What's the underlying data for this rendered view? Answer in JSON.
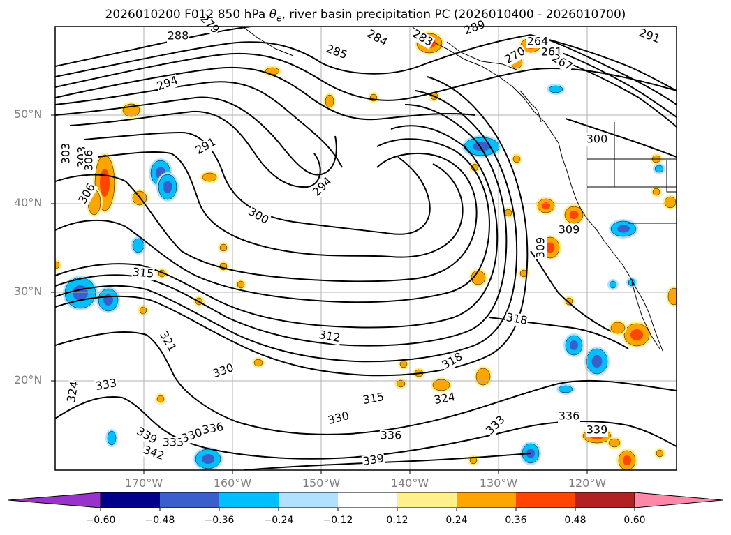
{
  "title": {
    "prefix": "2026010200 F012 850 hPa ",
    "theta": "θ",
    "sub": "e",
    "suffix": ", river basin precipitation PC (2026010400 - 2026010700)"
  },
  "lat_labels": [
    "50°N",
    "40°N",
    "30°N",
    "20°N"
  ],
  "lon_labels": [
    "170°W",
    "160°W",
    "150°W",
    "140°W",
    "130°W",
    "120°W"
  ],
  "contour_labels": [
    "288",
    "279",
    "285",
    "284",
    "283",
    "289",
    "270",
    "264",
    "261",
    "267",
    "291",
    "294",
    "291",
    "294",
    "300",
    "306",
    "303",
    "306",
    "303",
    "306",
    "315",
    "321",
    "330",
    "324",
    "333",
    "339",
    "333",
    "330",
    "336",
    "342",
    "336",
    "315",
    "312",
    "318",
    "318",
    "330",
    "336",
    "324",
    "333",
    "339",
    "336",
    "339",
    "309",
    "309",
    "300"
  ],
  "colorbar": {
    "ticks": [
      "−0.60",
      "−0.48",
      "−0.36",
      "−0.24",
      "−0.12",
      "0.12",
      "0.24",
      "0.36",
      "0.48",
      "0.60"
    ],
    "colors": [
      "#9932cc",
      "#00008b",
      "#3a5fcd",
      "#00bfff",
      "#b0e2ff",
      "#ffffff",
      "#fff08c",
      "#ffa500",
      "#ff4500",
      "#b22222",
      "#ff88a8"
    ],
    "under_color": "#9932cc",
    "over_color": "#ff88a8"
  },
  "fill_colors": {
    "pos_light": "#fff08c",
    "pos_mid": "#ffa500",
    "pos_strong": "#ff4500",
    "neg_light": "#b0e2ff",
    "neg_mid": "#00bfff",
    "neg_strong": "#3a5fcd"
  }
}
